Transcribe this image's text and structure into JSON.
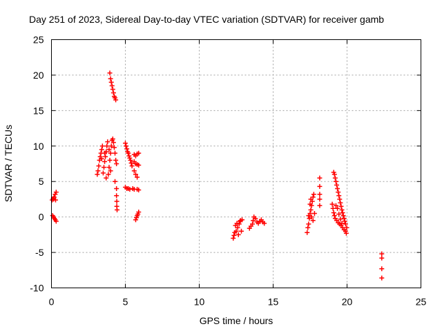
{
  "chart_data": {
    "type": "scatter",
    "title": "Day 251 of 2023, Sidereal Day-to-day VTEC variation (SDTVAR) for receiver gamb",
    "xlabel": "GPS time / hours",
    "ylabel": "SDTVAR / TECUs",
    "xlim": [
      0,
      25
    ],
    "ylim": [
      -10,
      25
    ],
    "x_ticks": [
      0,
      5,
      10,
      15,
      20,
      25
    ],
    "x_tick_labels": [
      "0",
      "5",
      "10",
      "15",
      "20",
      "25"
    ],
    "y_ticks": [
      -10,
      -5,
      0,
      5,
      10,
      15,
      20,
      25
    ],
    "y_tick_labels": [
      "-10",
      "-5",
      "0",
      "5",
      "10",
      "15",
      "20",
      "25"
    ],
    "grid": true,
    "marker": "+",
    "color": "#ff0000",
    "series": [
      {
        "name": "SDTVAR",
        "points": [
          [
            0.05,
            2.4
          ],
          [
            0.12,
            2.6
          ],
          [
            0.18,
            2.8
          ],
          [
            0.25,
            3.2
          ],
          [
            0.32,
            3.5
          ],
          [
            0.15,
            2.5
          ],
          [
            0.28,
            2.4
          ],
          [
            0.08,
            0.2
          ],
          [
            0.14,
            0.0
          ],
          [
            0.2,
            -0.2
          ],
          [
            0.26,
            -0.4
          ],
          [
            0.32,
            -0.6
          ],
          [
            3.1,
            6.0
          ],
          [
            3.15,
            6.5
          ],
          [
            3.2,
            7.2
          ],
          [
            3.25,
            8.0
          ],
          [
            3.3,
            8.5
          ],
          [
            3.35,
            9.0
          ],
          [
            3.4,
            9.5
          ],
          [
            3.45,
            10.0
          ],
          [
            3.5,
            6.2
          ],
          [
            3.55,
            7.0
          ],
          [
            3.6,
            7.8
          ],
          [
            3.65,
            8.5
          ],
          [
            3.7,
            9.2
          ],
          [
            3.75,
            10.0
          ],
          [
            3.8,
            10.6
          ],
          [
            3.85,
            6.0
          ],
          [
            3.9,
            7.0
          ],
          [
            3.95,
            8.0
          ],
          [
            4.0,
            9.0
          ],
          [
            4.05,
            10.0
          ],
          [
            4.1,
            10.8
          ],
          [
            4.15,
            11.0
          ],
          [
            4.2,
            10.5
          ],
          [
            3.4,
            8.2
          ],
          [
            3.6,
            9.0
          ],
          [
            3.9,
            9.5
          ],
          [
            4.25,
            9.8
          ],
          [
            4.3,
            9.0
          ],
          [
            4.35,
            8.0
          ],
          [
            4.4,
            7.5
          ],
          [
            3.7,
            5.5
          ],
          [
            4.0,
            6.5
          ],
          [
            4.3,
            5.0
          ],
          [
            4.4,
            4.0
          ],
          [
            4.4,
            3.0
          ],
          [
            4.42,
            2.2
          ],
          [
            4.42,
            1.5
          ],
          [
            4.44,
            1.0
          ],
          [
            3.95,
            20.3
          ],
          [
            4.0,
            19.5
          ],
          [
            4.05,
            19.0
          ],
          [
            4.1,
            18.5
          ],
          [
            4.15,
            18.0
          ],
          [
            4.2,
            17.5
          ],
          [
            4.25,
            17.0
          ],
          [
            4.3,
            16.8
          ],
          [
            4.35,
            16.5
          ],
          [
            5.0,
            10.4
          ],
          [
            5.05,
            10.0
          ],
          [
            5.1,
            9.6
          ],
          [
            5.15,
            9.2
          ],
          [
            5.2,
            9.0
          ],
          [
            5.25,
            8.6
          ],
          [
            5.3,
            8.3
          ],
          [
            5.35,
            8.0
          ],
          [
            5.4,
            7.6
          ],
          [
            5.45,
            7.2
          ],
          [
            5.6,
            8.8
          ],
          [
            5.7,
            8.6
          ],
          [
            5.8,
            8.9
          ],
          [
            5.9,
            9.0
          ],
          [
            5.6,
            7.8
          ],
          [
            5.7,
            7.5
          ],
          [
            5.8,
            7.4
          ],
          [
            5.9,
            7.3
          ],
          [
            5.6,
            6.5
          ],
          [
            5.7,
            6.0
          ],
          [
            5.8,
            5.6
          ],
          [
            5.0,
            4.2
          ],
          [
            5.1,
            4.0
          ],
          [
            5.2,
            4.0
          ],
          [
            5.3,
            3.9
          ],
          [
            5.5,
            4.0
          ],
          [
            5.6,
            3.9
          ],
          [
            5.8,
            3.9
          ],
          [
            5.9,
            3.8
          ],
          [
            5.7,
            -0.4
          ],
          [
            5.75,
            -0.1
          ],
          [
            5.8,
            0.2
          ],
          [
            5.85,
            0.4
          ],
          [
            5.9,
            0.7
          ],
          [
            12.3,
            -3.0
          ],
          [
            12.35,
            -2.6
          ],
          [
            12.4,
            -2.2
          ],
          [
            12.5,
            -2.0
          ],
          [
            12.6,
            -1.5
          ],
          [
            12.7,
            -1.0
          ],
          [
            12.75,
            -0.6
          ],
          [
            12.8,
            -0.5
          ],
          [
            12.9,
            -0.4
          ],
          [
            12.45,
            -1.2
          ],
          [
            12.55,
            -0.9
          ],
          [
            12.65,
            -2.5
          ],
          [
            12.85,
            -2.0
          ],
          [
            13.4,
            -1.6
          ],
          [
            13.5,
            -1.3
          ],
          [
            13.6,
            -1.0
          ],
          [
            13.65,
            -0.5
          ],
          [
            13.7,
            0.0
          ],
          [
            13.8,
            -0.2
          ],
          [
            13.9,
            -0.7
          ],
          [
            14.0,
            -0.9
          ],
          [
            14.1,
            -0.6
          ],
          [
            14.2,
            -0.4
          ],
          [
            14.3,
            -0.7
          ],
          [
            14.4,
            -0.9
          ],
          [
            17.3,
            -2.2
          ],
          [
            17.35,
            -1.5
          ],
          [
            17.4,
            -1.0
          ],
          [
            17.45,
            -0.2
          ],
          [
            17.5,
            0.5
          ],
          [
            17.55,
            1.0
          ],
          [
            17.6,
            1.6
          ],
          [
            17.65,
            2.2
          ],
          [
            17.7,
            2.8
          ],
          [
            17.75,
            3.2
          ],
          [
            17.4,
            0.2
          ],
          [
            17.5,
            1.8
          ],
          [
            17.55,
            2.5
          ],
          [
            17.6,
            0.0
          ],
          [
            17.7,
            -0.5
          ],
          [
            17.8,
            0.5
          ],
          [
            18.15,
            5.5
          ],
          [
            18.15,
            4.3
          ],
          [
            18.15,
            3.2
          ],
          [
            18.15,
            2.5
          ],
          [
            18.15,
            1.6
          ],
          [
            19.1,
            6.3
          ],
          [
            19.15,
            6.0
          ],
          [
            19.2,
            5.5
          ],
          [
            19.25,
            5.0
          ],
          [
            19.3,
            4.5
          ],
          [
            19.35,
            4.0
          ],
          [
            19.4,
            3.5
          ],
          [
            19.45,
            3.0
          ],
          [
            19.5,
            2.5
          ],
          [
            19.55,
            2.0
          ],
          [
            19.6,
            1.5
          ],
          [
            19.65,
            1.0
          ],
          [
            19.7,
            0.6
          ],
          [
            19.75,
            0.2
          ],
          [
            19.8,
            -0.2
          ],
          [
            19.85,
            -0.6
          ],
          [
            19.9,
            -1.0
          ],
          [
            19.0,
            1.8
          ],
          [
            19.05,
            1.2
          ],
          [
            19.1,
            0.6
          ],
          [
            19.15,
            0.2
          ],
          [
            19.2,
            -0.2
          ],
          [
            19.3,
            -0.5
          ],
          [
            19.4,
            -0.8
          ],
          [
            19.5,
            -1.0
          ],
          [
            19.6,
            -1.2
          ],
          [
            19.7,
            -1.5
          ],
          [
            19.8,
            -1.8
          ],
          [
            19.9,
            -2.0
          ],
          [
            19.95,
            -2.3
          ],
          [
            19.98,
            -1.5
          ],
          [
            19.25,
            1.6
          ],
          [
            19.35,
            1.2
          ],
          [
            19.45,
            0.4
          ],
          [
            19.55,
            -0.3
          ],
          [
            19.65,
            -0.9
          ],
          [
            22.35,
            -5.2
          ],
          [
            22.35,
            -5.8
          ],
          [
            22.35,
            -7.3
          ],
          [
            22.35,
            -8.6
          ]
        ]
      }
    ]
  }
}
